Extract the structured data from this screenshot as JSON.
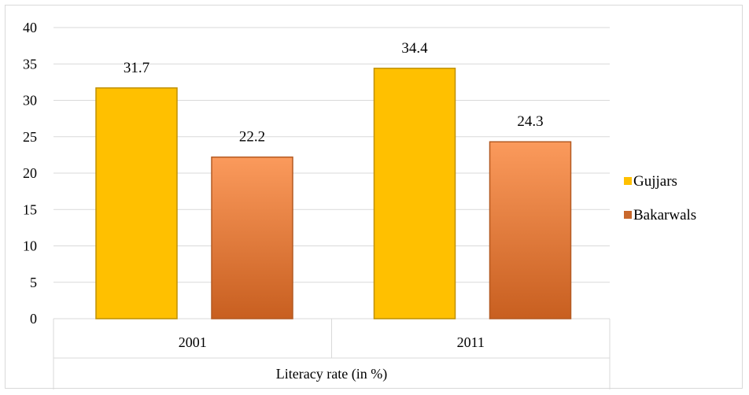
{
  "chart_data": {
    "type": "bar",
    "categories": [
      "2001",
      "2011"
    ],
    "series": [
      {
        "name": "Gujjars",
        "values": [
          31.7,
          34.4
        ],
        "color": "#ffc000"
      },
      {
        "name": "Bakarwals",
        "values": [
          22.2,
          24.3
        ],
        "color": "#e87a3a"
      }
    ],
    "xlabel": "Literacy rate (in %)",
    "ylabel": "",
    "ylim": [
      0,
      40
    ],
    "yticks": [
      0,
      5,
      10,
      15,
      20,
      25,
      30,
      35,
      40
    ],
    "grid": true,
    "legend_position": "right",
    "data_labels": [
      "31.7",
      "22.2",
      "34.4",
      "24.3"
    ]
  }
}
